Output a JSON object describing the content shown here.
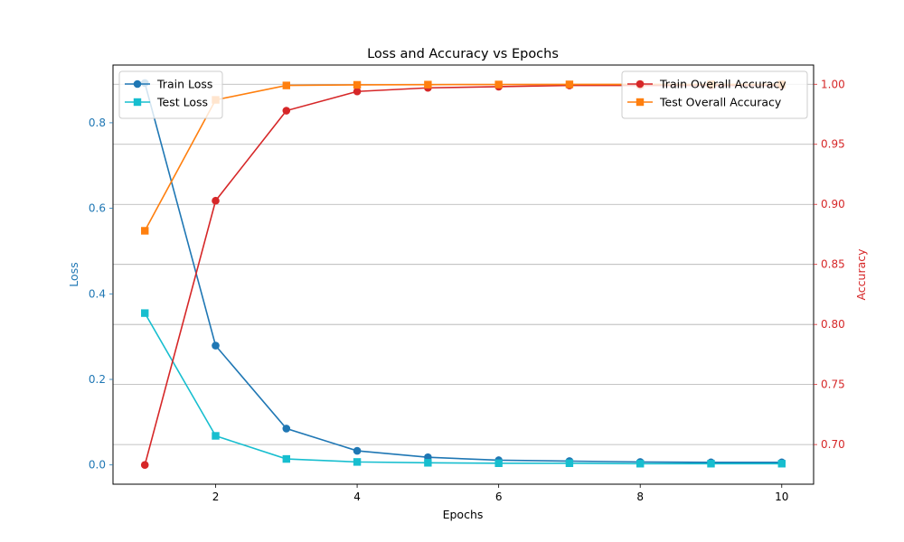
{
  "chart_data": {
    "type": "line",
    "title": "Loss and Accuracy vs Epochs",
    "xlabel": "Epochs",
    "ylabel_left": "Loss",
    "ylabel_right": "Accuracy",
    "x": [
      1,
      2,
      3,
      4,
      5,
      6,
      7,
      8,
      9,
      10
    ],
    "xlim": [
      0.55,
      10.45
    ],
    "xticks": [
      2,
      4,
      6,
      8,
      10
    ],
    "ylim_left": [
      -0.045,
      0.935
    ],
    "yticks_left": [
      0.0,
      0.2,
      0.4,
      0.6,
      0.8
    ],
    "ylim_right": [
      0.667,
      1.016
    ],
    "yticks_right": [
      0.7,
      0.75,
      0.8,
      0.85,
      0.9,
      0.95,
      1.0
    ],
    "grid": "horizontal, right axis",
    "left_axis_color": "#1f77b4",
    "right_axis_color": "#d62728",
    "series_left": [
      {
        "name": "Train Loss",
        "color": "#1f77b4",
        "marker": "circle",
        "values": [
          0.893,
          0.279,
          0.085,
          0.033,
          0.018,
          0.011,
          0.009,
          0.007,
          0.006,
          0.006
        ]
      },
      {
        "name": "Test Loss",
        "color": "#17becf",
        "marker": "square",
        "values": [
          0.355,
          0.068,
          0.014,
          0.007,
          0.005,
          0.004,
          0.004,
          0.003,
          0.003,
          0.003
        ]
      }
    ],
    "series_right": [
      {
        "name": "Train Overall Accuracy",
        "color": "#d62728",
        "marker": "circle",
        "values": [
          0.683,
          0.903,
          0.978,
          0.994,
          0.997,
          0.998,
          0.999,
          0.999,
          0.999,
          0.999
        ]
      },
      {
        "name": "Test Overall Accuracy",
        "color": "#ff7f0e",
        "marker": "square",
        "values": [
          0.878,
          0.987,
          0.999,
          0.9995,
          0.9997,
          0.9998,
          0.9999,
          0.9999,
          0.9999,
          0.9999
        ]
      }
    ],
    "legend_left": "upper-left",
    "legend_right": "upper-right"
  }
}
